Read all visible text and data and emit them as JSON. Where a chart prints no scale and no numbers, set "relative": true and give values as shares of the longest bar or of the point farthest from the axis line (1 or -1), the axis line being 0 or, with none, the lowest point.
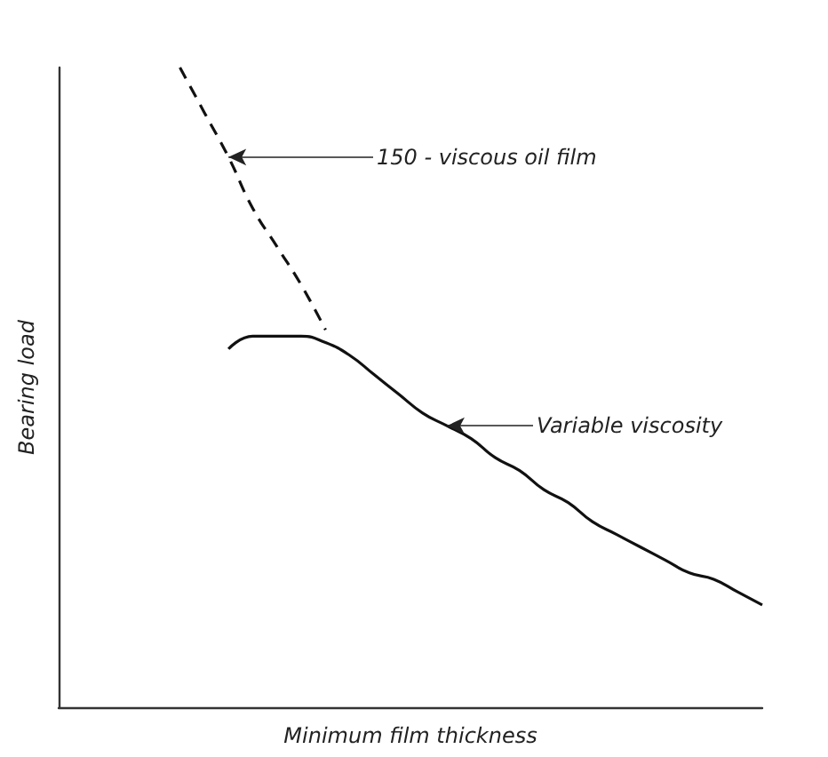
{
  "chart_data": {
    "type": "line",
    "relative": true,
    "xlabel": "Minimum film thickness",
    "ylabel": "Bearing load",
    "categories": [
      null,
      null,
      null,
      null,
      null,
      null,
      null,
      null,
      null,
      null,
      null,
      null,
      null,
      null,
      null,
      null,
      null,
      null,
      null,
      null,
      null,
      null,
      null,
      null,
      null,
      null,
      null,
      null,
      null,
      null
    ],
    "series": [
      {
        "color": "#111111",
        "line_style": "dashed",
        "values": [
          null,
          null,
          null,
          null,
          null,
          1.0,
          0.93,
          0.86,
          0.78,
          0.72,
          0.66,
          0.59,
          null,
          null,
          null,
          null,
          null,
          null,
          null,
          null,
          null,
          null,
          null,
          null,
          null,
          null,
          null,
          null,
          null,
          null
        ]
      },
      {
        "color": "#111111",
        "line_style": "solid",
        "values": [
          null,
          null,
          null,
          null,
          null,
          null,
          null,
          0.56,
          0.58,
          0.58,
          0.58,
          0.57,
          0.55,
          0.52,
          0.49,
          0.46,
          0.44,
          0.42,
          0.39,
          0.37,
          0.34,
          0.32,
          0.29,
          0.27,
          0.25,
          0.23,
          0.21,
          0.2,
          0.18,
          0.16
        ]
      }
    ],
    "annotations": [
      "150 - viscous oil film",
      "Variable viscosity"
    ],
    "marker": "none",
    "grid": false
  }
}
